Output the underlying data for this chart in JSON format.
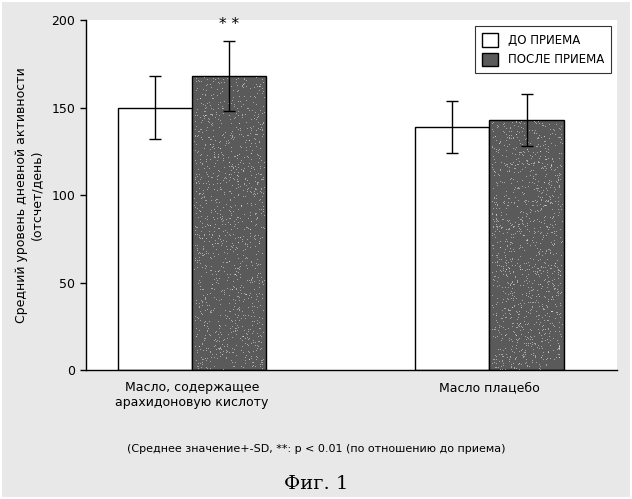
{
  "group1_label": "Масло, содержащее\nарахидоновую кислоту",
  "group2_label": "Масло плацебо",
  "before_values": [
    150,
    139
  ],
  "after_values": [
    168,
    143
  ],
  "before_errors": [
    18,
    15
  ],
  "after_errors": [
    20,
    15
  ],
  "ylim": [
    0,
    200
  ],
  "yticks": [
    0,
    50,
    100,
    150,
    200
  ],
  "ylabel_line1": "Средний уровень дневной активности",
  "ylabel_line2": "(отсчет/день)",
  "legend_before": "ДО ПРИЕМА",
  "legend_after": "ПОСЛЕ ПРИЕМА",
  "annotation": "* *",
  "footnote": "(Среднее значение+-SD, **: p < 0.01 (по отношению до приема)",
  "figure_label": "Фиг. 1",
  "background_color": "#F0F0F0",
  "edge_color": "#000000"
}
